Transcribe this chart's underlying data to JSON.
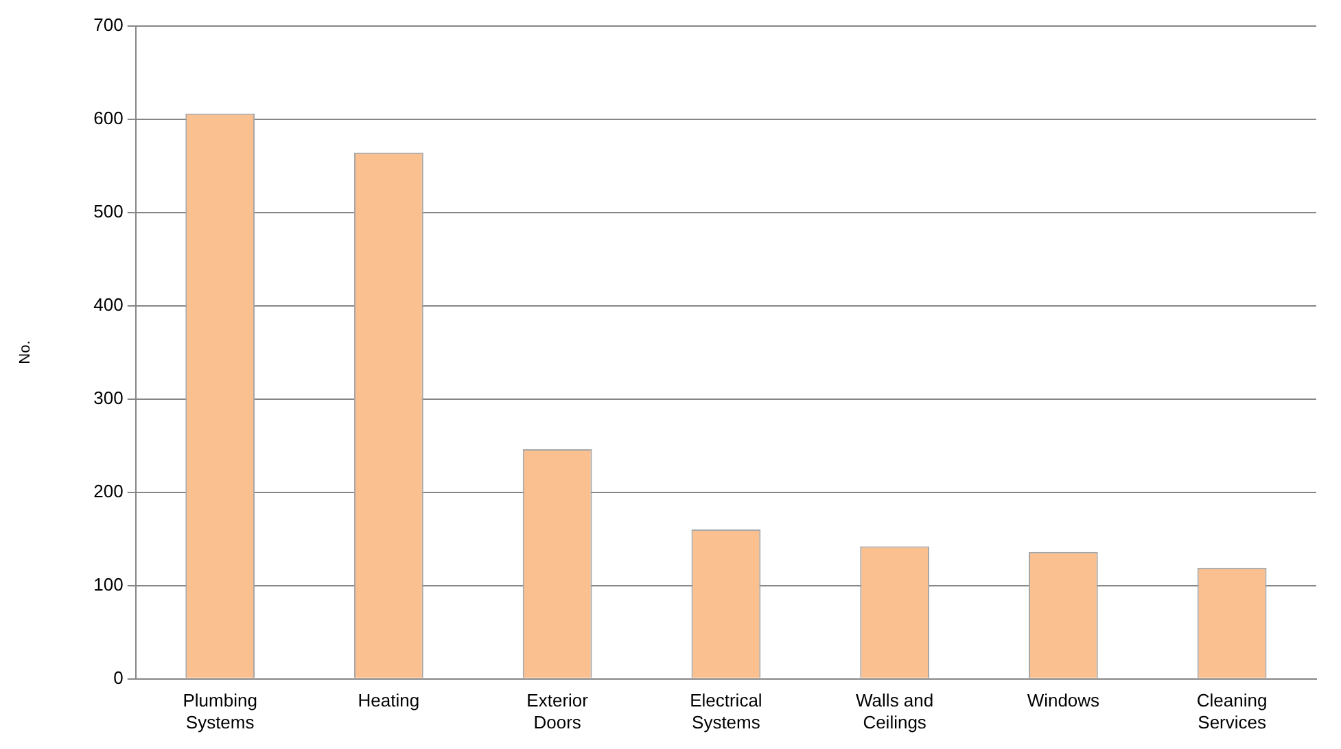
{
  "chart_data": {
    "type": "bar",
    "ylabel": "No.",
    "categories": [
      "Plumbing Systems",
      "Heating",
      "Exterior Doors",
      "Electrical Systems",
      "Walls and Ceilings",
      "Windows",
      "Cleaning Services"
    ],
    "values": [
      606,
      564,
      246,
      160,
      142,
      136,
      119
    ],
    "color": "#fac090",
    "ylim": [
      0,
      700
    ],
    "yticks": [
      0,
      100,
      200,
      300,
      400,
      500,
      600,
      700
    ],
    "grid": "y"
  }
}
